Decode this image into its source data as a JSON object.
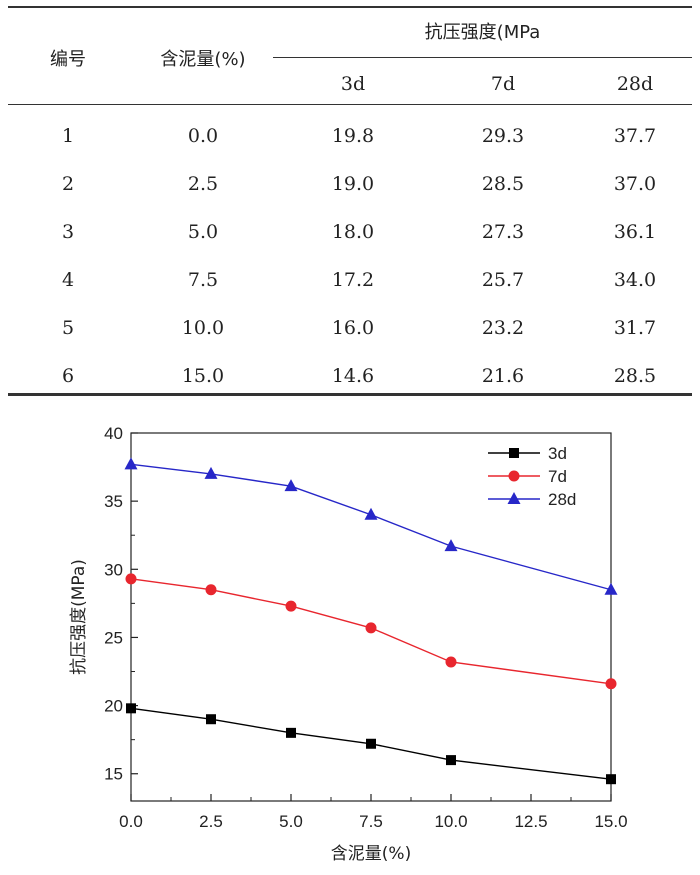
{
  "table": {
    "header": {
      "id": "编号",
      "mud": "含泥量(%)",
      "group": "抗压强度(MPa",
      "ages": [
        "3d",
        "7d",
        "28d"
      ]
    },
    "rows": [
      [
        "1",
        "0.0",
        "19.8",
        "29.3",
        "37.7"
      ],
      [
        "2",
        "2.5",
        "19.0",
        "28.5",
        "37.0"
      ],
      [
        "3",
        "5.0",
        "18.0",
        "27.3",
        "36.1"
      ],
      [
        "4",
        "7.5",
        "17.2",
        "25.7",
        "34.0"
      ],
      [
        "5",
        "10.0",
        "16.0",
        "23.2",
        "31.7"
      ],
      [
        "6",
        "15.0",
        "14.6",
        "21.6",
        "28.5"
      ]
    ]
  },
  "chart_data": {
    "type": "line",
    "x": [
      0.0,
      2.5,
      5.0,
      7.5,
      10.0,
      15.0
    ],
    "series": [
      {
        "name": "3d",
        "values": [
          19.8,
          19.0,
          18.0,
          17.2,
          16.0,
          14.6
        ],
        "color": "#000000",
        "marker": "square"
      },
      {
        "name": "7d",
        "values": [
          29.3,
          28.5,
          27.3,
          25.7,
          23.2,
          21.6
        ],
        "color": "#e8262e",
        "marker": "circle"
      },
      {
        "name": "28d",
        "values": [
          37.7,
          37.0,
          36.1,
          34.0,
          31.7,
          28.5
        ],
        "color": "#2727c8",
        "marker": "triangle"
      }
    ],
    "xlabel": "含泥量(%)",
    "ylabel": "抗压强度(MPa)",
    "xlim": [
      0,
      15.0
    ],
    "ylim": [
      13,
      40
    ],
    "xticks": [
      "0.0",
      "2.5",
      "5.0",
      "7.5",
      "10.0",
      "12.5",
      "15.0"
    ],
    "yticks": [
      "15",
      "20",
      "25",
      "30",
      "35",
      "40"
    ],
    "grid": false,
    "legend": "top-right"
  }
}
